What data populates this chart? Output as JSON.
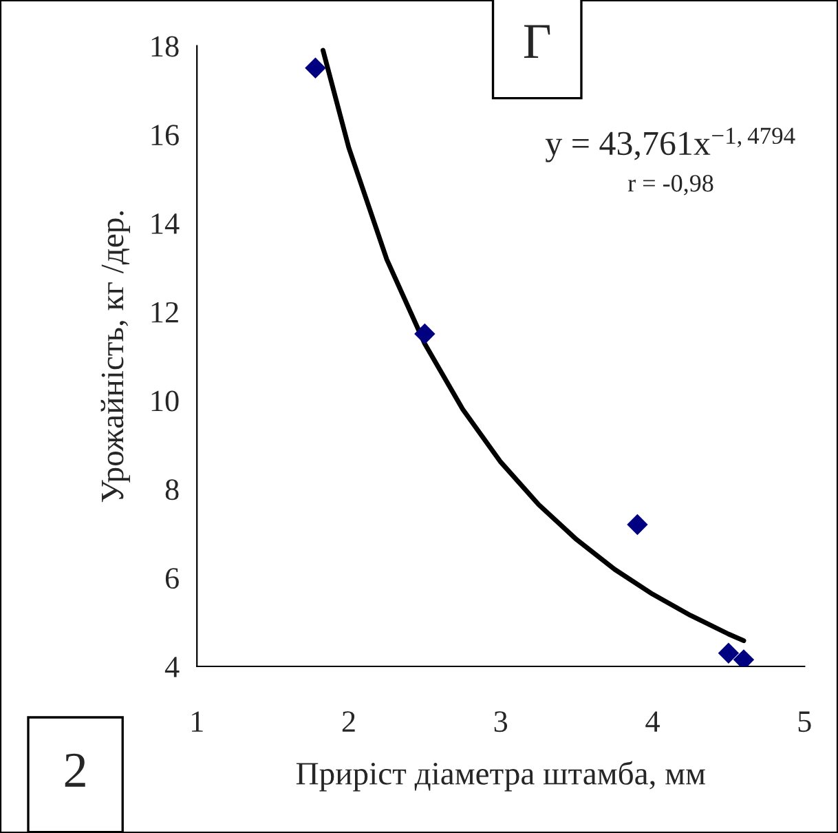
{
  "chart_data": {
    "type": "scatter",
    "xlabel": "Приріст діаметра штамба, мм",
    "ylabel": "Урожайність, кг /дер.",
    "xlim": [
      1,
      5
    ],
    "xticks": [
      1,
      2,
      3,
      4,
      5
    ],
    "ylim": [
      4,
      18
    ],
    "yticks": [
      4,
      6,
      8,
      10,
      12,
      14,
      16,
      18
    ],
    "grid": false,
    "legend": false,
    "marker": "diamond",
    "series": [
      {
        "color": "#000080",
        "x": [
          1.78,
          2.5,
          3.9,
          4.5,
          4.6
        ],
        "values": [
          17.5,
          11.5,
          7.2,
          4.3,
          4.15
        ]
      },
      {
        "type": "line",
        "color": "#000000",
        "marker": "none",
        "line_style": "solid",
        "x": [
          1.83,
          2.0,
          2.25,
          2.5,
          2.75,
          3.0,
          3.25,
          3.5,
          3.75,
          4.0,
          4.25,
          4.5,
          4.6
        ],
        "values": [
          17.9,
          15.7,
          13.18,
          11.28,
          9.8,
          8.61,
          7.65,
          6.86,
          6.19,
          5.63,
          5.15,
          4.73,
          4.58
        ]
      }
    ],
    "annotations": [
      "Г",
      "y = 43,761x$^{−1,4794}$",
      "r = -0,98",
      "2"
    ]
  }
}
